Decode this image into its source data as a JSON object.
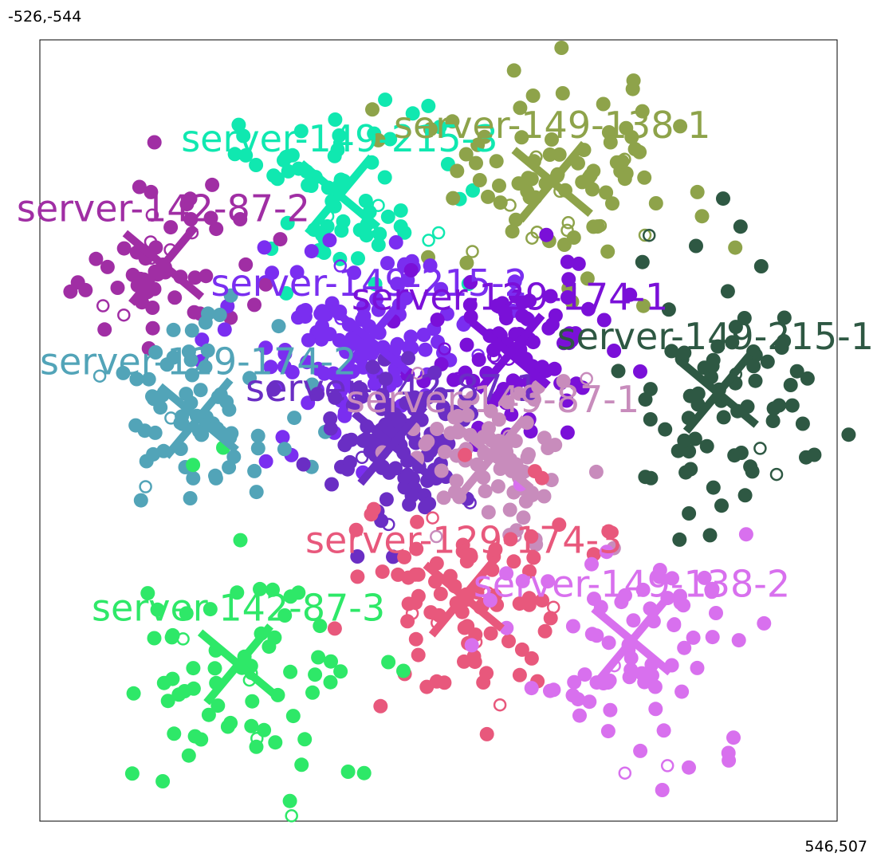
{
  "corners": {
    "top_left": "-526,-544",
    "bottom_right": "546,507"
  },
  "chart_data": {
    "type": "scatter",
    "title": "",
    "xlabel": "",
    "ylabel": "",
    "xlim": [
      -526,
      546
    ],
    "ylim": [
      -544,
      507
    ],
    "y_inverted": true,
    "grid": false,
    "legend": "labels drawn at cluster centroids",
    "clusters": [
      {
        "name": "server-149-215-3",
        "color": "#10e8b0",
        "center": [
          -123,
          -335
        ],
        "spread": [
          100,
          80
        ],
        "count": 70,
        "seed": 11
      },
      {
        "name": "server-149-138-1",
        "color": "#8ea34a",
        "center": [
          163,
          -353
        ],
        "spread": [
          115,
          90
        ],
        "count": 90,
        "seed": 22
      },
      {
        "name": "server-142-87-2",
        "color": "#a02ea4",
        "center": [
          -360,
          -241
        ],
        "spread": [
          85,
          75
        ],
        "count": 55,
        "seed": 33
      },
      {
        "name": "server-149-215-2",
        "color": "#7a2ef0",
        "center": [
          -83,
          -141
        ],
        "spread": [
          100,
          90
        ],
        "count": 120,
        "seed": 44
      },
      {
        "name": "server-129-174-1",
        "color": "#7a10d8",
        "center": [
          106,
          -122
        ],
        "spread": [
          90,
          80
        ],
        "count": 90,
        "seed": 55
      },
      {
        "name": "server-149-215-1",
        "color": "#2e5843",
        "center": [
          386,
          -69
        ],
        "spread": [
          95,
          110
        ],
        "count": 75,
        "seed": 66
      },
      {
        "name": "server-129-174-2",
        "color": "#52a4b8",
        "center": [
          -313,
          -35
        ],
        "spread": [
          100,
          95
        ],
        "count": 70,
        "seed": 77
      },
      {
        "name": "server-142-87-1",
        "color": "#6a2ec4",
        "center": [
          -52,
          1
        ],
        "spread": [
          65,
          70
        ],
        "count": 110,
        "seed": 88
      },
      {
        "name": "server-149-87-1",
        "color": "#c88cbc",
        "center": [
          83,
          16
        ],
        "spread": [
          75,
          65
        ],
        "count": 85,
        "seed": 99
      },
      {
        "name": "server-129-174-3",
        "color": "#e8587c",
        "center": [
          44,
          205
        ],
        "spread": [
          95,
          105
        ],
        "count": 90,
        "seed": 111
      },
      {
        "name": "server-149-138-2",
        "color": "#d870ee",
        "center": [
          270,
          264
        ],
        "spread": [
          95,
          105
        ],
        "count": 80,
        "seed": 122
      },
      {
        "name": "server-142-87-3",
        "color": "#2ee868",
        "center": [
          -259,
          296
        ],
        "spread": [
          115,
          110
        ],
        "count": 70,
        "seed": 133
      }
    ]
  }
}
